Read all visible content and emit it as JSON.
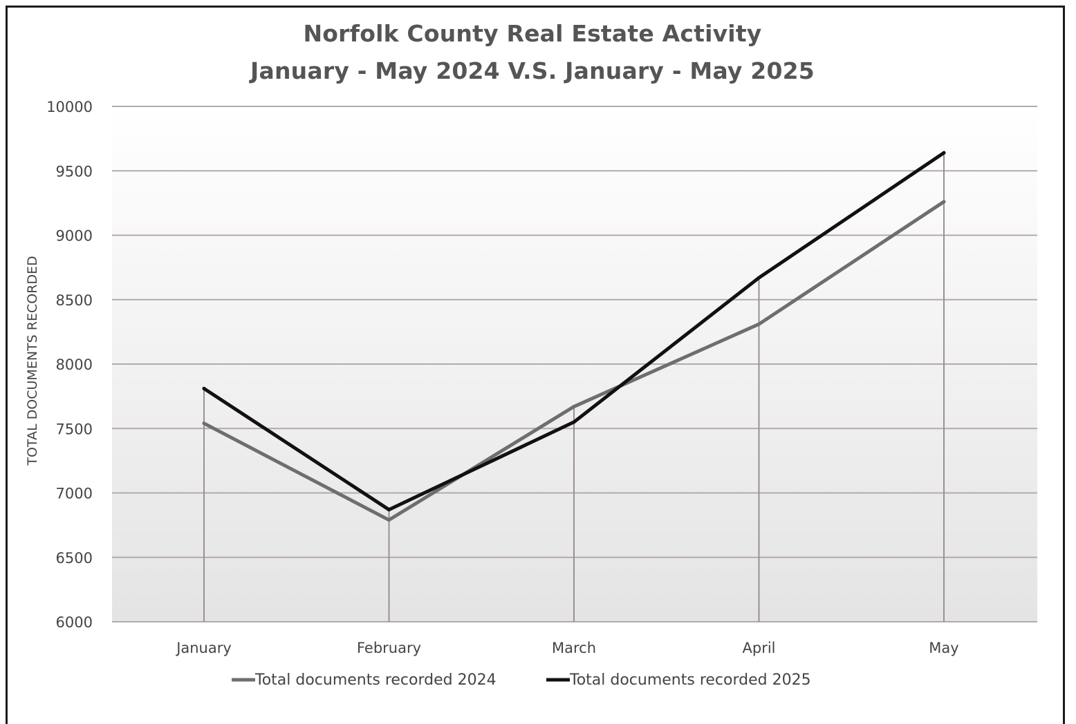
{
  "chart_data": {
    "type": "line",
    "title": "Norfolk County Real Estate Activity",
    "subtitle": "January - May 2024 V.S. January - May 2025",
    "xlabel": "",
    "ylabel": "TOTAL DOCUMENTS RECORDED",
    "categories": [
      "January",
      "February",
      "March",
      "April",
      "May"
    ],
    "ylim": [
      6000,
      10000
    ],
    "yticks": [
      6000,
      6500,
      7000,
      7500,
      8000,
      8500,
      9000,
      9500,
      10000
    ],
    "grid": true,
    "legend_position": "bottom",
    "series": [
      {
        "name": "Total documents recorded 2024",
        "color": "#6e6e6e",
        "values": [
          7540,
          6790,
          7670,
          8310,
          9260
        ]
      },
      {
        "name": "Total documents recorded 2025",
        "color": "#111111",
        "values": [
          7810,
          6870,
          7550,
          8670,
          9640
        ]
      }
    ],
    "colors": {
      "gridline": "#b5a9a9",
      "droplines": "#9c9090",
      "plot_bg_top": "#ffffff",
      "plot_bg_bottom": "#e4e4e4"
    }
  }
}
